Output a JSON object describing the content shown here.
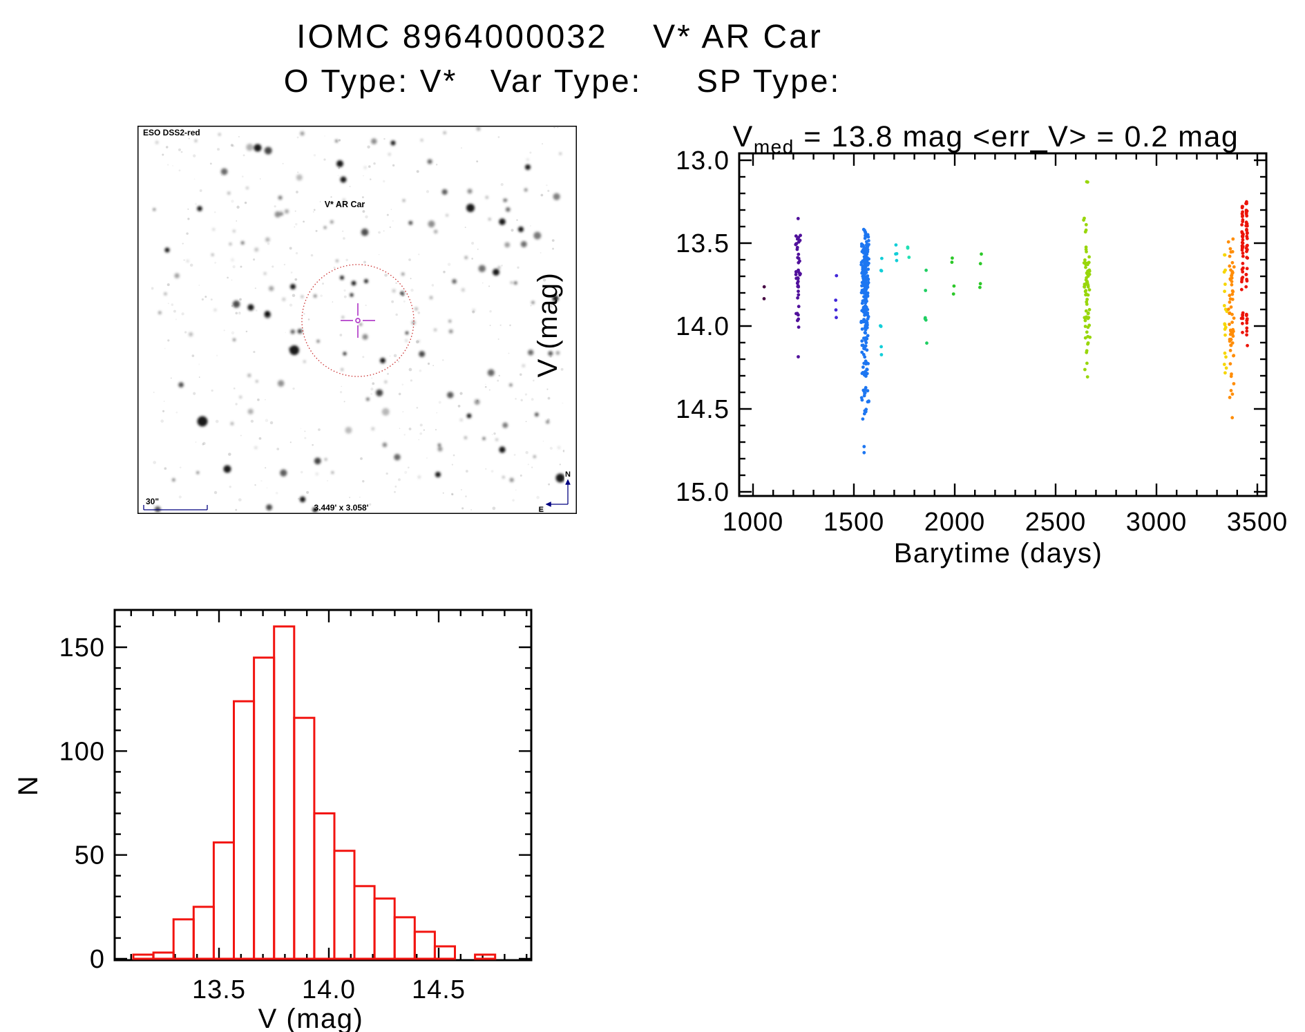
{
  "page": {
    "title": "IOMC 8964000032    V* AR Car",
    "subtitle": "O Type: V*   Var Type:     SP Type:"
  },
  "starfield": {
    "survey_label": "ESO DSS2-red",
    "target_label": "V* AR Car",
    "scale_label": "30\"",
    "fov_label": "3.449' x 3.058'",
    "compass_north": "N",
    "compass_east": "E",
    "label_color": "#000080",
    "target_color": "#990000",
    "circle_color": "#c92c2c",
    "crosshair_color": "#b23ec9"
  },
  "chart_data": [
    {
      "id": "lightcurve",
      "type": "scatter",
      "title_parts": {
        "pre": "V",
        "sub": "med",
        "post": "  =  13.8 mag  <err_V>  =  0.2 mag"
      },
      "xlabel": "Barytime (days)",
      "ylabel": "V (mag)",
      "xlim": [
        931,
        3544
      ],
      "ylim": [
        15.03,
        12.96
      ],
      "y_inverted": true,
      "x_ticks": [
        1000,
        1500,
        2000,
        2500,
        3000,
        3500
      ],
      "x_minor_step": 100,
      "y_ticks": [
        13.0,
        13.5,
        14.0,
        14.5,
        15.0
      ],
      "y_tick_labels": [
        "13.0",
        "13.5",
        "14.0",
        "14.5",
        "15.0"
      ],
      "y_minor_step": 0.1,
      "grid": false,
      "legend": "none",
      "clusters": [
        {
          "day": 1055,
          "color": "#470b45",
          "jitter": 1.5,
          "segments": [
            [
              13.76,
              13.79,
              1
            ],
            [
              13.82,
              13.85,
              1
            ]
          ]
        },
        {
          "day": 1223,
          "color": "#50109b",
          "jitter": 4,
          "segments": [
            [
              13.34,
              13.37,
              1
            ],
            [
              13.44,
              13.58,
              12
            ],
            [
              13.58,
              13.76,
              16
            ],
            [
              13.76,
              13.97,
              11
            ],
            [
              14.0,
              14.03,
              1
            ],
            [
              14.17,
              14.2,
              1
            ]
          ]
        },
        {
          "day": 1411,
          "color": "#4327d8",
          "jitter": 1.5,
          "segments": [
            [
              13.69,
              13.71,
              1
            ],
            [
              13.84,
              13.86,
              1
            ],
            [
              13.89,
              13.91,
              1
            ],
            [
              13.93,
              13.95,
              1
            ]
          ]
        },
        {
          "day": 1556,
          "color": "#1d76f1",
          "jitter": 6,
          "segments": [
            [
              13.4,
              13.5,
              12
            ],
            [
              13.5,
              13.65,
              60
            ],
            [
              13.65,
              13.85,
              85
            ],
            [
              13.85,
              14.1,
              55
            ],
            [
              14.1,
              14.3,
              28
            ],
            [
              14.3,
              14.45,
              12
            ],
            [
              14.45,
              14.58,
              8
            ],
            [
              14.71,
              14.74,
              1
            ],
            [
              14.76,
              14.79,
              1
            ]
          ]
        },
        {
          "day": 1637,
          "color": "#12ced8",
          "jitter": 2,
          "segments": [
            [
              13.57,
              13.68,
              3
            ],
            [
              13.98,
              14.08,
              2
            ],
            [
              14.12,
              14.22,
              2
            ]
          ]
        },
        {
          "day": 1712,
          "color": "#12ced8",
          "jitter": 2,
          "segments": [
            [
              13.5,
              13.66,
              4
            ]
          ]
        },
        {
          "day": 1768,
          "color": "#1fe0b4",
          "jitter": 2,
          "segments": [
            [
              13.47,
              13.63,
              3
            ]
          ]
        },
        {
          "day": 1858,
          "color": "#1fce62",
          "jitter": 2,
          "segments": [
            [
              13.66,
              13.69,
              1
            ],
            [
              13.77,
              13.8,
              1
            ],
            [
              13.95,
              14.16,
              4
            ]
          ]
        },
        {
          "day": 1990,
          "color": "#2cc829",
          "jitter": 2,
          "segments": [
            [
              13.56,
              13.62,
              2
            ],
            [
              13.69,
              13.81,
              2
            ]
          ]
        },
        {
          "day": 2130,
          "color": "#2cc829",
          "jitter": 2,
          "segments": [
            [
              13.56,
              13.63,
              2
            ],
            [
              13.7,
              13.81,
              2
            ]
          ]
        },
        {
          "day": 2655,
          "color": "#98d60b",
          "jitter": 5,
          "segments": [
            [
              13.1,
              13.14,
              2
            ],
            [
              13.29,
              13.44,
              5
            ],
            [
              13.52,
              13.7,
              22
            ],
            [
              13.7,
              13.95,
              30
            ],
            [
              13.95,
              14.12,
              12
            ],
            [
              14.14,
              14.31,
              5
            ]
          ]
        },
        {
          "day": 3343,
          "color": "#f6d600",
          "jitter": 3,
          "segments": [
            [
              13.53,
              13.75,
              5
            ],
            [
              13.75,
              14.1,
              9
            ],
            [
              14.1,
              14.4,
              5
            ]
          ]
        },
        {
          "day": 3372,
          "color": "#ff8d07",
          "jitter": 5,
          "segments": [
            [
              13.45,
              13.6,
              6
            ],
            [
              13.6,
              13.85,
              20
            ],
            [
              13.85,
              14.15,
              26
            ],
            [
              14.15,
              14.35,
              6
            ],
            [
              14.38,
              14.48,
              3
            ],
            [
              14.55,
              14.6,
              1
            ]
          ]
        },
        {
          "day": 3437,
          "color": "#ec1409",
          "jitter": 1.5,
          "split": 3.2,
          "segments": [
            [
              13.25,
              13.4,
              26
            ],
            [
              13.41,
              13.57,
              30
            ],
            [
              13.57,
              13.8,
              18
            ],
            [
              13.92,
              14.06,
              16
            ],
            [
              14.09,
              14.12,
              1
            ]
          ]
        }
      ]
    },
    {
      "id": "histogram",
      "type": "bar",
      "xlabel": "V (mag)",
      "ylabel": "N",
      "bin_start": 13.11,
      "bin_width": 0.0915,
      "values": [
        2,
        3,
        19,
        25,
        56,
        124,
        145,
        160,
        116,
        70,
        52,
        35,
        29,
        20,
        13,
        6,
        0,
        2
      ],
      "x_ticks": [
        13.5,
        14.0,
        14.5
      ],
      "x_tick_labels": [
        "13.5",
        "14.0",
        "14.5"
      ],
      "x_minor_step": 0.1,
      "y_ticks": [
        0,
        50,
        100,
        150
      ],
      "y_minor_step": 10,
      "xlim": [
        13.025,
        14.92
      ],
      "ylim": [
        0,
        168
      ],
      "grid": false,
      "bar_color": "#f21410"
    }
  ]
}
